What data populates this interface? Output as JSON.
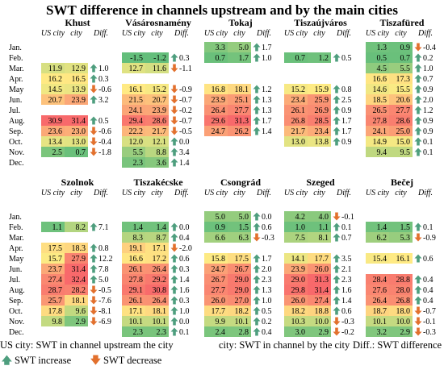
{
  "title": "SWT difference in channels upstream and by the main cities",
  "months": [
    "Jan.",
    "Feb.",
    "Mar.",
    "Apr.",
    "May",
    "Jun.",
    "Jul.",
    "Aug.",
    "Sep.",
    "Oct.",
    "Nov.",
    "Dec."
  ],
  "column_headers": {
    "us_city": "US city",
    "city": "city",
    "diff": "Diff."
  },
  "legend": {
    "us_city": "US city: SWT in channel upstream the city",
    "city": "city: SWT in channel by the city",
    "diff": "Diff.: SWT difference",
    "increase": "SWT increase",
    "decrease": "SWT decrease"
  },
  "colors": {
    "increase_arrow": "#4e9e7e",
    "decrease_arrow": "#e2702d",
    "scale_low": "#63be7b",
    "scale_mid": "#ffeb84",
    "scale_high": "#f8696b"
  },
  "icons": {
    "increase": "arrow-up-icon",
    "decrease": "arrow-down-icon"
  },
  "chart_data": {
    "type": "table",
    "color_scale": {
      "min": 0,
      "mid": 16,
      "max": 31
    },
    "panels": [
      {
        "city": "Khust",
        "rows": [
          null,
          null,
          [
            11.9,
            12.9,
            1.0
          ],
          [
            16.2,
            16.5,
            0.3
          ],
          [
            14.5,
            13.9,
            -0.6
          ],
          [
            20.7,
            23.9,
            3.2
          ],
          null,
          [
            30.9,
            31.4,
            0.5
          ],
          [
            23.6,
            23.0,
            -0.6
          ],
          [
            13.4,
            13.0,
            -0.4
          ],
          [
            2.5,
            0.7,
            -1.8
          ],
          null
        ]
      },
      {
        "city": "Vásárosnamény",
        "rows": [
          null,
          [
            -1.5,
            -1.2,
            0.3
          ],
          [
            12.7,
            11.6,
            -1.1
          ],
          null,
          [
            16.1,
            15.2,
            -0.9
          ],
          [
            21.5,
            20.7,
            -0.7
          ],
          [
            24.1,
            23.9,
            -0.2
          ],
          [
            29.4,
            28.6,
            -0.7
          ],
          [
            22.2,
            21.7,
            -0.5
          ],
          [
            12.0,
            12.1,
            0.0
          ],
          [
            5.5,
            8.8,
            3.4
          ],
          [
            2.3,
            3.6,
            1.4
          ]
        ]
      },
      {
        "city": "Tokaj",
        "rows": [
          [
            3.3,
            5.0,
            1.7
          ],
          [
            0.7,
            1.7,
            1.0
          ],
          null,
          null,
          [
            16.8,
            18.1,
            1.2
          ],
          [
            23.9,
            25.1,
            1.3
          ],
          [
            26.4,
            27.7,
            1.3
          ],
          [
            29.6,
            31.3,
            1.7
          ],
          [
            24.7,
            26.2,
            1.4
          ],
          null,
          null,
          null
        ]
      },
      {
        "city": "Tiszaújváros",
        "rows": [
          null,
          [
            0.7,
            1.2,
            0.5
          ],
          null,
          null,
          [
            15.2,
            15.9,
            0.8
          ],
          [
            23.4,
            25.9,
            2.5
          ],
          [
            26.1,
            26.9,
            0.9
          ],
          [
            26.8,
            28.5,
            1.7
          ],
          [
            21.7,
            23.4,
            1.7
          ],
          [
            13.0,
            13.8,
            0.9
          ],
          null,
          null
        ]
      },
      {
        "city": "Tiszafüred",
        "rows": [
          [
            1.3,
            0.9,
            -0.4
          ],
          [
            0.5,
            0.7,
            0.2
          ],
          [
            4.5,
            5.5,
            1.0
          ],
          [
            16.6,
            17.3,
            0.7
          ],
          [
            14.6,
            15.5,
            0.9
          ],
          [
            18.5,
            20.6,
            2.0
          ],
          [
            26.5,
            27.7,
            1.2
          ],
          [
            27.8,
            28.6,
            0.9
          ],
          [
            24.1,
            25.0,
            0.9
          ],
          [
            14.9,
            15.0,
            0.1
          ],
          [
            9.4,
            9.5,
            0.1
          ],
          null
        ]
      },
      {
        "city": "Szolnok",
        "rows": [
          null,
          [
            1.1,
            8.2,
            7.1
          ],
          null,
          [
            17.5,
            18.3,
            0.8
          ],
          [
            15.7,
            27.9,
            12.2
          ],
          [
            23.7,
            31.4,
            7.8
          ],
          [
            27.4,
            32.4,
            5.0
          ],
          [
            28.7,
            28.2,
            -0.5
          ],
          [
            25.7,
            18.1,
            -7.6
          ],
          [
            17.8,
            9.6,
            -8.1
          ],
          [
            9.8,
            2.9,
            -6.9
          ],
          null
        ]
      },
      {
        "city": "Tiszakécske",
        "rows": [
          null,
          [
            1.4,
            1.4,
            0.0
          ],
          [
            8.3,
            8.7,
            0.4
          ],
          [
            19.1,
            17.1,
            -2.0
          ],
          [
            16.6,
            17.2,
            0.6
          ],
          [
            26.1,
            26.4,
            0.3
          ],
          [
            27.8,
            29.2,
            1.4
          ],
          [
            29.1,
            30.8,
            1.6
          ],
          [
            26.1,
            26.4,
            0.3
          ],
          [
            17.1,
            18.1,
            1.0
          ],
          [
            10.1,
            10.1,
            0.0
          ],
          [
            2.3,
            2.3,
            0.1
          ]
        ]
      },
      {
        "city": "Csongrád",
        "rows": [
          [
            5.0,
            5.0,
            0.0
          ],
          [
            0.9,
            1.5,
            0.6
          ],
          [
            6.6,
            6.3,
            -0.3
          ],
          null,
          [
            15.8,
            17.5,
            1.7
          ],
          [
            24.7,
            26.7,
            2.0
          ],
          [
            26.7,
            29.0,
            2.3
          ],
          [
            27.7,
            29.0,
            1.3
          ],
          [
            26.0,
            27.0,
            1.0
          ],
          [
            17.7,
            18.2,
            0.5
          ],
          [
            9.9,
            10.1,
            0.2
          ],
          [
            2.4,
            2.8,
            0.4
          ]
        ]
      },
      {
        "city": "Szeged",
        "rows": [
          [
            4.2,
            4.0,
            -0.1
          ],
          [
            1.0,
            1.1,
            0.1
          ],
          [
            7.5,
            8.1,
            0.7
          ],
          null,
          [
            14.1,
            17.7,
            3.5
          ],
          [
            23.9,
            26.0,
            2.1
          ],
          [
            29.0,
            31.3,
            2.3
          ],
          [
            29.8,
            31.4,
            1.6
          ],
          [
            26.0,
            27.4,
            1.4
          ],
          [
            18.2,
            18.8,
            0.6
          ],
          [
            10.3,
            10.0,
            -0.3
          ],
          [
            3.0,
            2.9,
            -0.2
          ]
        ]
      },
      {
        "city": "Bečej",
        "rows": [
          null,
          [
            1.4,
            1.5,
            0.1
          ],
          [
            6.2,
            5.3,
            -0.9
          ],
          null,
          [
            15.4,
            16.1,
            0.6
          ],
          null,
          [
            28.4,
            28.8,
            0.4
          ],
          [
            27.6,
            28.0,
            0.4
          ],
          [
            26.4,
            26.8,
            0.4
          ],
          [
            18.7,
            18.0,
            -0.7
          ],
          [
            10.1,
            10.0,
            -0.1
          ],
          [
            3.2,
            2.9,
            -0.3
          ]
        ]
      }
    ]
  }
}
